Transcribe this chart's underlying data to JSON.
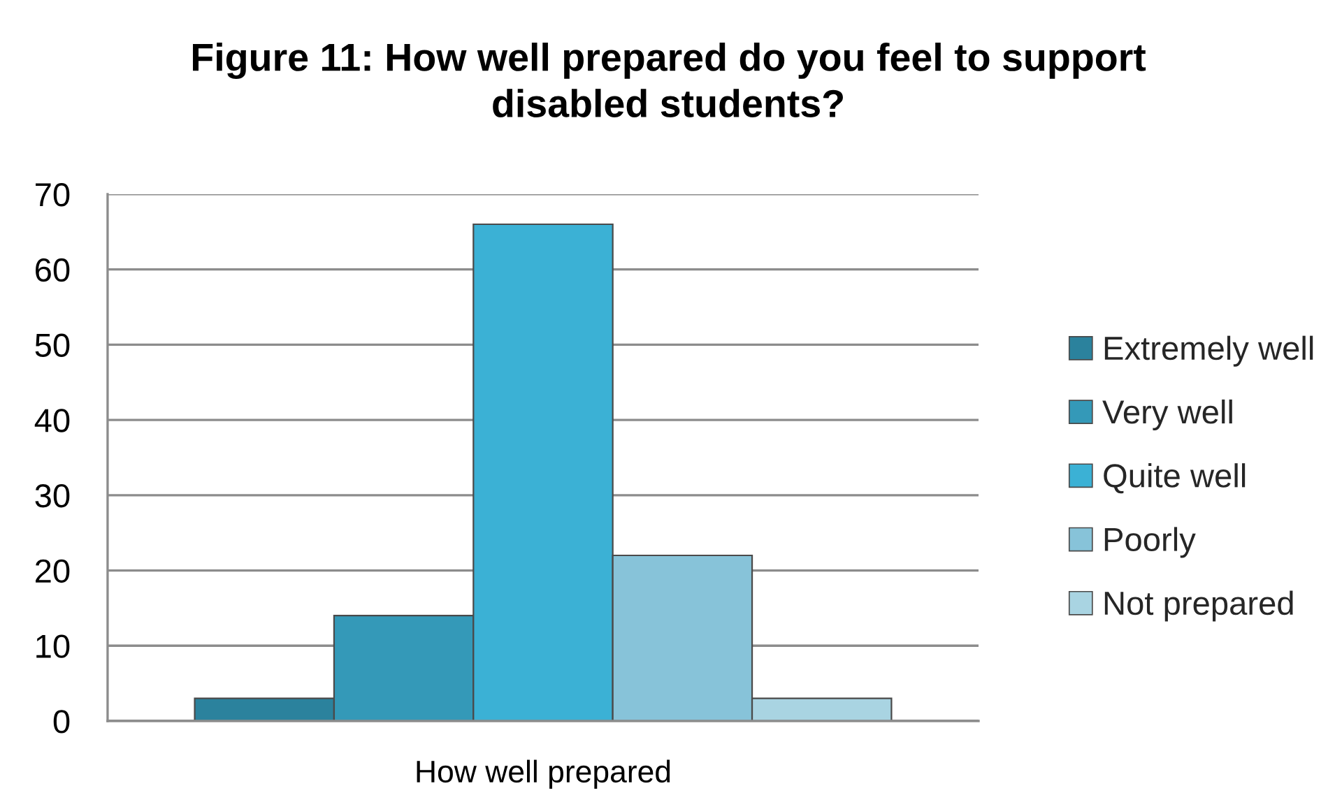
{
  "chart_data": {
    "type": "bar",
    "title": "Figure 11: How well prepared do you feel to support disabled students?",
    "categories": [
      "How well prepared"
    ],
    "series": [
      {
        "name": "Extremely well",
        "color": "#2b829d",
        "values": [
          3
        ]
      },
      {
        "name": "Very well",
        "color": "#3499b8",
        "values": [
          14
        ]
      },
      {
        "name": "Quite well",
        "color": "#3bb1d5",
        "values": [
          66
        ]
      },
      {
        "name": "Poorly",
        "color": "#87c3d9",
        "values": [
          22
        ]
      },
      {
        "name": "Not prepared",
        "color": "#a9d4e2",
        "values": [
          3
        ]
      }
    ],
    "ylim": [
      0,
      70
    ],
    "yticks": [
      0,
      10,
      20,
      30,
      40,
      50,
      60,
      70
    ],
    "grid": "y",
    "legend": "right"
  }
}
